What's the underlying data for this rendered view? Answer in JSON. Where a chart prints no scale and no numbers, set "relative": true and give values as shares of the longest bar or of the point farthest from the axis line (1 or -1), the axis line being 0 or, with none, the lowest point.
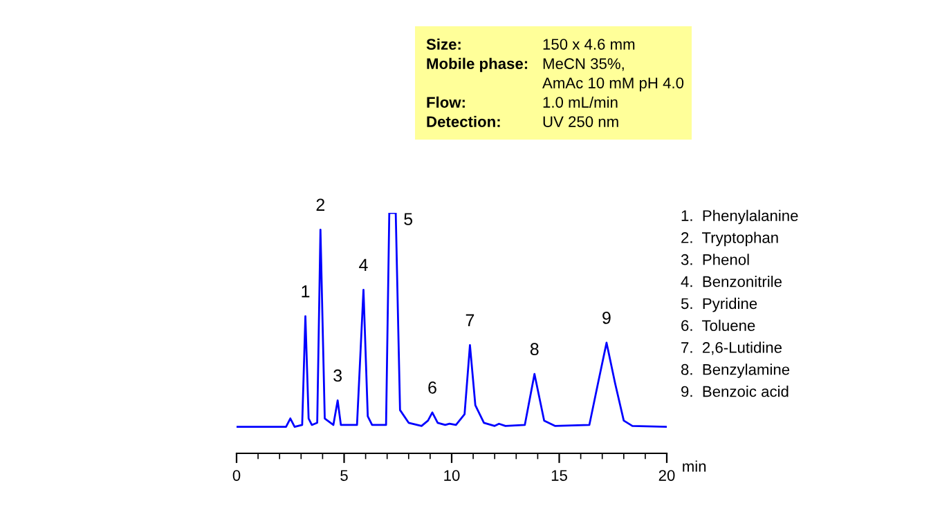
{
  "chart_data": {
    "type": "line",
    "relative": true,
    "xlabel": "min",
    "xlim": [
      0,
      20
    ],
    "xticks": [
      0,
      5,
      10,
      15,
      20
    ],
    "grid": false,
    "legend": false,
    "marker": "none",
    "line_style": "solid",
    "series": [
      {
        "color": "#0000ff",
        "x": [
          0,
          2.3,
          2.5,
          2.7,
          3.05,
          3.2,
          3.35,
          3.5,
          3.75,
          3.9,
          4.1,
          4.5,
          4.7,
          4.85,
          5.6,
          5.9,
          6.1,
          6.3,
          6.95,
          7.1,
          7.4,
          7.6,
          8.0,
          8.6,
          8.9,
          9.1,
          9.35,
          9.7,
          9.9,
          10.2,
          10.6,
          10.85,
          11.1,
          11.5,
          12.0,
          12.2,
          12.5,
          13.4,
          13.85,
          14.3,
          14.8,
          16.4,
          16.8,
          17.2,
          17.6,
          18.0,
          18.4,
          20
        ],
        "values": [
          0.11,
          0.11,
          0.145,
          0.11,
          0.118,
          0.57,
          0.145,
          0.118,
          0.127,
          0.93,
          0.145,
          0.118,
          0.22,
          0.118,
          0.118,
          0.68,
          0.154,
          0.118,
          0.118,
          1,
          1,
          0.18,
          0.127,
          0.114,
          0.136,
          0.17,
          0.127,
          0.118,
          0.123,
          0.118,
          0.163,
          0.45,
          0.2,
          0.127,
          0.114,
          0.123,
          0.114,
          0.118,
          0.33,
          0.136,
          0.114,
          0.118,
          0.29,
          0.46,
          0.29,
          0.136,
          0.114,
          0.11
        ]
      }
    ],
    "annotations": [
      {
        "text": "1",
        "x": 3.2,
        "y": 0.57
      },
      {
        "text": "2",
        "x": 3.9,
        "y": 0.93
      },
      {
        "text": "3",
        "x": 4.7,
        "y": 0.22
      },
      {
        "text": "4",
        "x": 5.9,
        "y": 0.68
      },
      {
        "text": "5",
        "x": 7.4,
        "y": 1
      },
      {
        "text": "6",
        "x": 9.1,
        "y": 0.17
      },
      {
        "text": "7",
        "x": 10.85,
        "y": 0.45
      },
      {
        "text": "8",
        "x": 13.85,
        "y": 0.33
      },
      {
        "text": "9",
        "x": 17.2,
        "y": 0.46
      },
      "1.  Phenylalanine",
      "2.  Tryptophan",
      "3.  Phenol",
      "4.  Benzonitrile",
      "5.  Pyridine",
      "6.  Toluene",
      "7.  2,6-Lutidine",
      "8.  Benzylamine",
      "9.  Benzoic acid",
      "Size:",
      "150 x 4.6 mm",
      "Mobile phase:",
      "MeCN 35%,\nAmAc 10 mM pH 4.0",
      "Flow:",
      "1.0 mL/min",
      "Detection:",
      "UV 250 nm"
    ]
  }
}
